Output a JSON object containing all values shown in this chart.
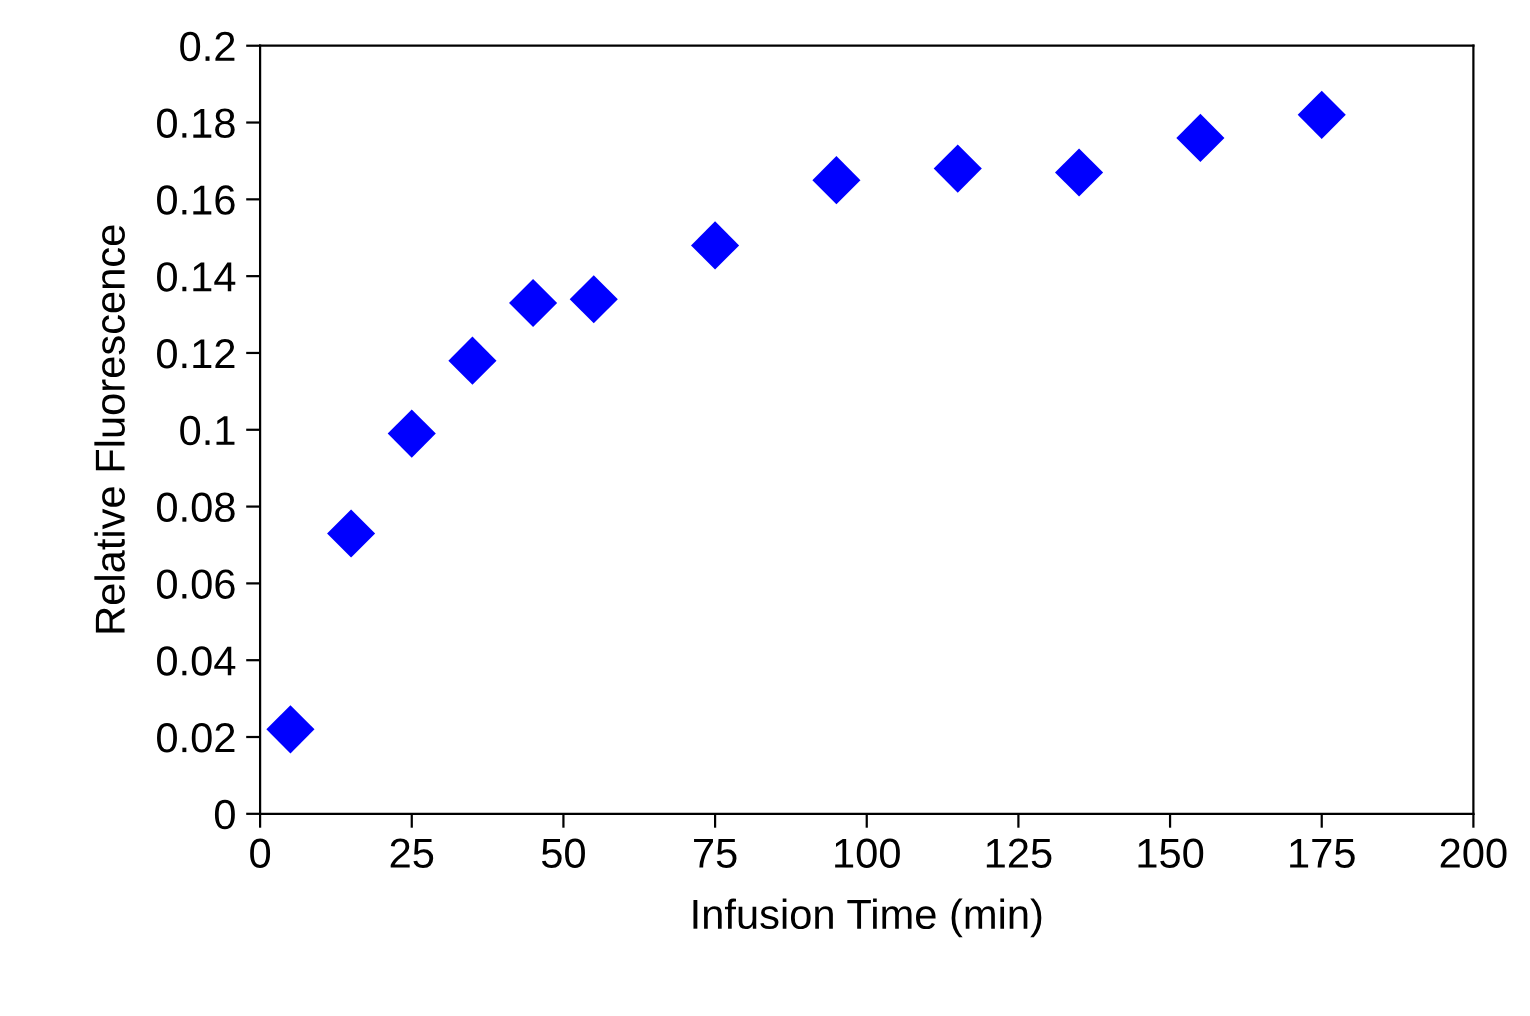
{
  "chart_data": {
    "type": "scatter",
    "xlabel": "Infusion Time (min)",
    "ylabel": "Relative Fluorescence",
    "x": [
      5,
      15,
      25,
      35,
      45,
      55,
      75,
      95,
      115,
      135,
      155,
      175
    ],
    "series": [
      {
        "color": "#0000ff",
        "values": [
          0.022,
          0.073,
          0.099,
          0.118,
          0.133,
          0.134,
          0.148,
          0.165,
          0.168,
          0.167,
          0.176,
          0.182
        ]
      }
    ],
    "marker": "diamond",
    "grid": false,
    "legend": false,
    "xlim": [
      0,
      200
    ],
    "xticks": [
      0,
      25,
      50,
      75,
      100,
      125,
      150,
      175,
      200
    ],
    "ylim": [
      0,
      0.2
    ],
    "yticks": [
      0,
      0.02,
      0.04,
      0.06,
      0.08,
      0.1,
      0.12,
      0.14,
      0.16,
      0.18,
      0.2
    ]
  }
}
